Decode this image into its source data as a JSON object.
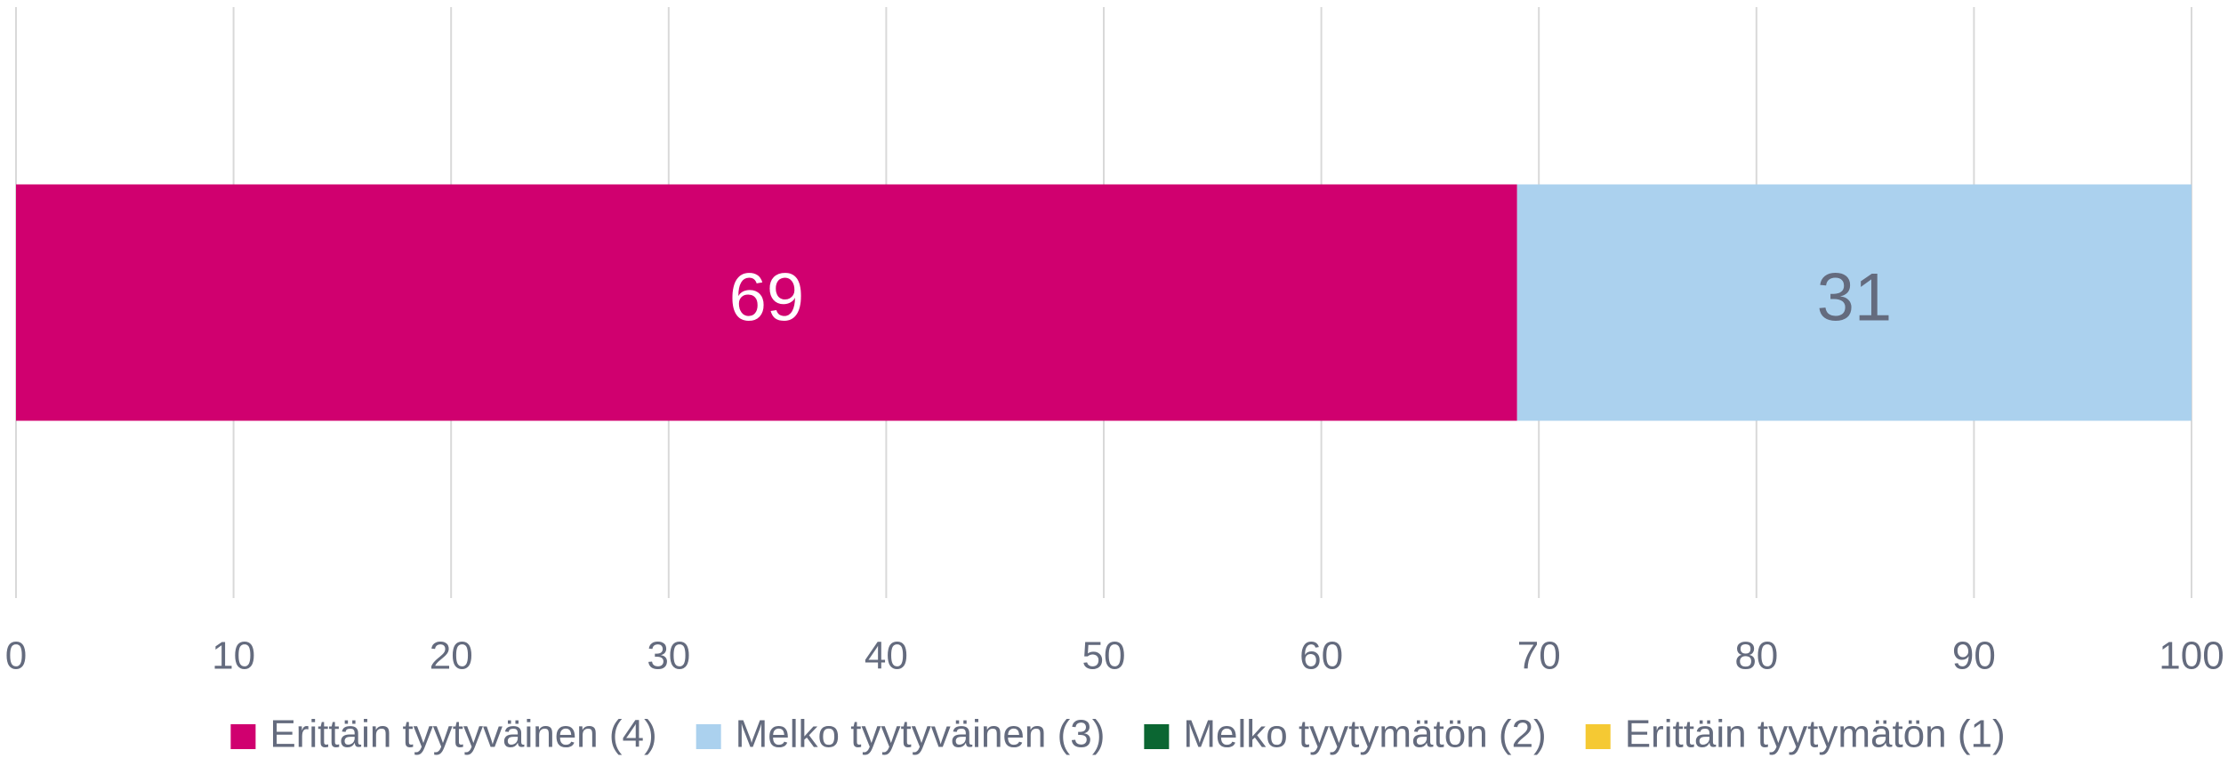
{
  "chart_data": {
    "type": "stacked_barh",
    "categories": [
      null
    ],
    "series": [
      {
        "name": "Erittäin tyytyväinen (4)",
        "color": "#d0006f",
        "values": [
          69
        ]
      },
      {
        "name": "Melko tyytyväinen (3)",
        "color": "#abd1ee",
        "values": [
          31
        ]
      },
      {
        "name": "Melko tyytymätön (2)",
        "color": "#0b6632",
        "values": [
          0
        ]
      },
      {
        "name": "Erittäin tyytymätön (1)",
        "color": "#f5c933",
        "values": [
          0
        ]
      }
    ],
    "xlim": [
      0,
      100
    ],
    "xticks": [
      0,
      10,
      20,
      30,
      40,
      50,
      60,
      70,
      80,
      90,
      100
    ],
    "grid": true,
    "legend": "bottom"
  }
}
